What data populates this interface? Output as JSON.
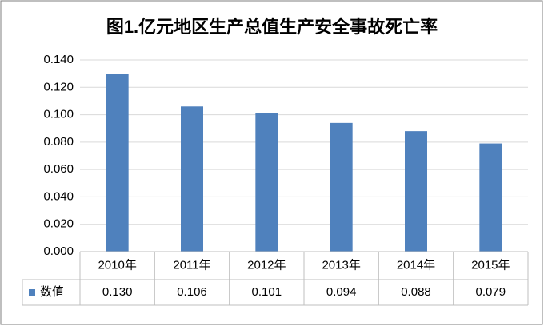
{
  "chart_data": {
    "type": "bar",
    "title": "图1.亿元地区生产总值生产安全事故死亡率",
    "categories": [
      "2010年",
      "2011年",
      "2012年",
      "2013年",
      "2014年",
      "2015年"
    ],
    "series": [
      {
        "name": "数值",
        "color": "#4f81bd",
        "values": [
          0.13,
          0.106,
          0.101,
          0.094,
          0.088,
          0.079
        ],
        "value_labels": [
          "0.130",
          "0.106",
          "0.101",
          "0.094",
          "0.088",
          "0.079"
        ]
      }
    ],
    "ylim": [
      0,
      0.14
    ],
    "yticks": [
      {
        "value": 0,
        "label": "0.000"
      },
      {
        "value": 0.02,
        "label": "0.020"
      },
      {
        "value": 0.04,
        "label": "0.040"
      },
      {
        "value": 0.06,
        "label": "0.060"
      },
      {
        "value": 0.08,
        "label": "0.080"
      },
      {
        "value": 0.1,
        "label": "0.100"
      },
      {
        "value": 0.12,
        "label": "0.120"
      },
      {
        "value": 0.14,
        "label": "0.140"
      }
    ],
    "grid": true
  }
}
